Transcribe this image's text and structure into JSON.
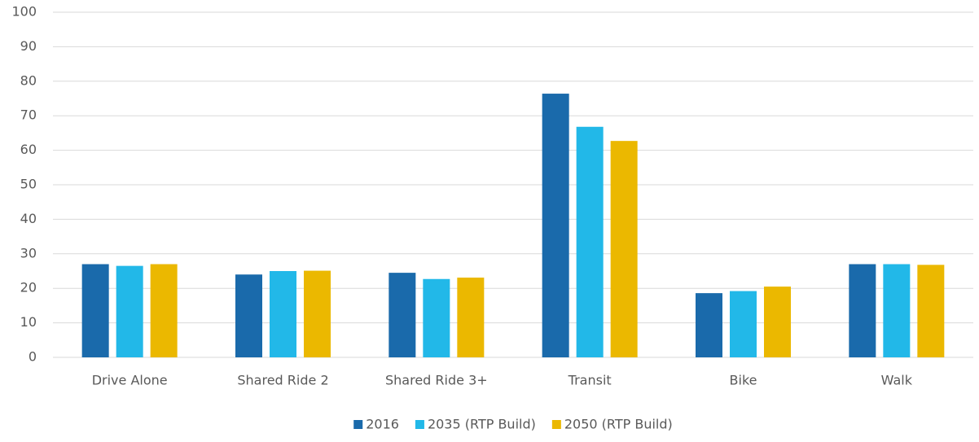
{
  "chart_data": {
    "type": "bar",
    "categories": [
      "Drive Alone",
      "Shared Ride 2",
      "Shared Ride 3+",
      "Transit",
      "Bike",
      "Walk"
    ],
    "series": [
      {
        "name": "2016",
        "color": "#1a6aab",
        "values": [
          27,
          24,
          24.5,
          76.4,
          18.6,
          27
        ]
      },
      {
        "name": "2035 (RTP Build)",
        "color": "#22b8e8",
        "values": [
          26.5,
          25,
          22.7,
          66.8,
          19.2,
          27
        ]
      },
      {
        "name": "2050 (RTP Build)",
        "color": "#ebb800",
        "values": [
          27,
          25.1,
          23.1,
          62.7,
          20.5,
          26.8
        ]
      }
    ],
    "ylim": [
      0,
      100
    ],
    "yticks": [
      0,
      10,
      20,
      30,
      40,
      50,
      60,
      70,
      80,
      90,
      100
    ],
    "grid": true,
    "legend": "bottom"
  }
}
